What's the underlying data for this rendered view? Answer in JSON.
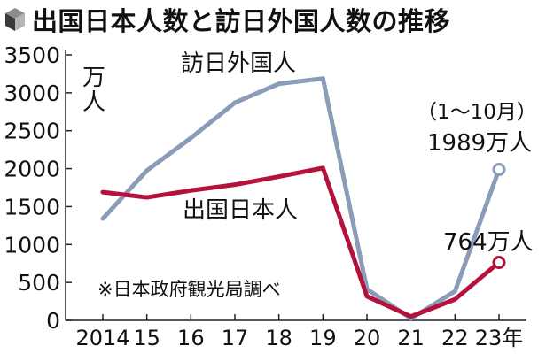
{
  "title": "出国日本人数と訪日外国人数の推移",
  "title_icon": "cube-icon",
  "chart_data": {
    "type": "line",
    "title": "出国日本人数と訪日外国人数の推移",
    "ylabel": "万人",
    "ylim": [
      0,
      3500
    ],
    "yticks": [
      0,
      500,
      1000,
      1500,
      2000,
      2500,
      3000,
      3500
    ],
    "x": [
      2014,
      2015,
      2016,
      2017,
      2018,
      2019,
      2020,
      2021,
      2022,
      2023
    ],
    "x_tick_labels": [
      "2014",
      "15",
      "16",
      "17",
      "18",
      "19",
      "20",
      "21",
      "22",
      "23年"
    ],
    "grid": false,
    "series": [
      {
        "name": "訪日外国人",
        "color": "#8a9cb8",
        "values": [
          1341,
          1974,
          2404,
          2869,
          3119,
          3188,
          412,
          25,
          383,
          1989
        ]
      },
      {
        "name": "出国日本人",
        "color": "#b4123c",
        "values": [
          1690,
          1621,
          1712,
          1789,
          1895,
          2008,
          317,
          51,
          277,
          764
        ]
      }
    ],
    "annotations": {
      "period_note": "（1〜10月）",
      "inbound_end_label": "1989万人",
      "outbound_end_label": "764万人",
      "source_note": "※日本政府観光局調べ"
    }
  }
}
